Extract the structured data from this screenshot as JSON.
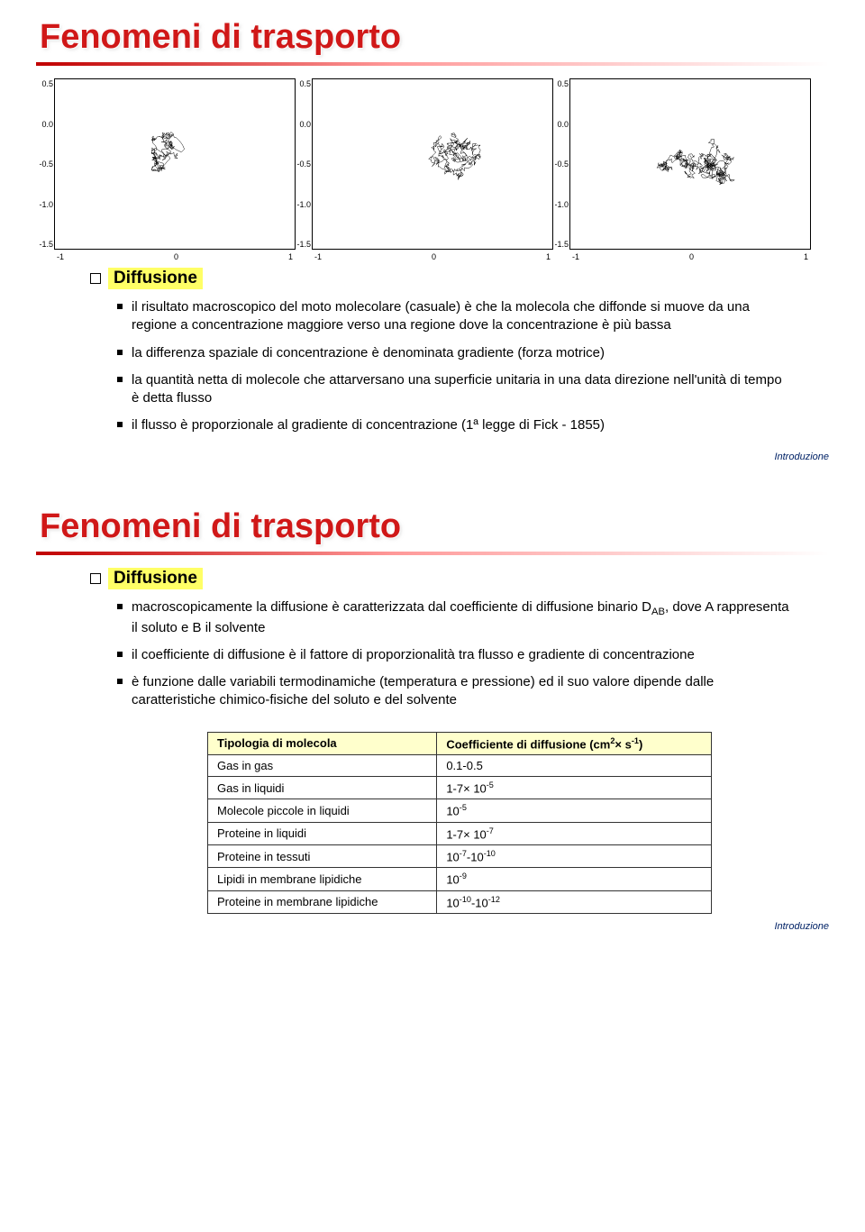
{
  "slide1": {
    "title": "Fenomeni di trasporto",
    "plots": {
      "yticks": [
        "0.5",
        "0.0",
        "-0.5",
        "-1.0",
        "-1.5"
      ],
      "xticks": [
        "-1",
        "0",
        "1"
      ],
      "xlim": [
        -1,
        1
      ],
      "ylim": [
        -1.5,
        0.5
      ],
      "border_color": "#000000",
      "axis_fontsize": 9,
      "bg_color": "#ffffff",
      "ink_color": "#000000",
      "panels": [
        {
          "density": 0.15,
          "spread_x": 0.22,
          "spread_y": 0.28
        },
        {
          "density": 0.35,
          "spread_x": 0.45,
          "spread_y": 0.45
        },
        {
          "density": 0.6,
          "spread_x": 0.7,
          "spread_y": 0.6
        }
      ]
    },
    "section_label": "Diffusione",
    "highlight_bg": "#ffff66",
    "bullets": [
      "il risultato macroscopico del moto molecolare (casuale) è che la molecola che diffonde si muove da una regione a concentrazione maggiore verso una regione dove la concentrazione è più bassa",
      "la differenza spaziale di concentrazione è denominata gradiente (forza motrice)",
      "la quantità netta di molecole che attarversano una superficie unitaria in una data direzione nell'unità di tempo è detta flusso",
      "il flusso è proporzionale al gradiente di concentrazione (1ª legge di Fick - 1855)"
    ],
    "footer": "Introduzione"
  },
  "slide2": {
    "title": "Fenomeni di trasporto",
    "section_label": "Diffusione",
    "highlight_bg": "#ffff66",
    "bullets": [
      {
        "pre": "macroscopicamente la diffusione è caratterizzata dal coefficiente di diffusione binario D",
        "sub": "AB",
        "post": ", dove A rappresenta il soluto e B il solvente"
      },
      {
        "text": "il coefficiente di diffusione è il fattore di proporzionalità tra flusso e gradiente di concentrazione"
      },
      {
        "text": "è funzione dalle variabili termodinamiche (temperatura e pressione) ed il suo valore dipende dalle caratteristiche chimico-fisiche del soluto e del solvente"
      }
    ],
    "table": {
      "header_bg": "#ffffcc",
      "col1_header": "Tipologia di molecola",
      "col2_header_pre": "Coefficiente di diffusione (cm",
      "col2_header_sup1": "2",
      "col2_header_mid": "× s",
      "col2_header_sup2": "-1",
      "col2_header_post": ")",
      "rows": [
        {
          "c1": "Gas in gas",
          "c2_plain": "0.1-0.5"
        },
        {
          "c1": "Gas in liquidi",
          "c2_pre": "1-7× 10",
          "c2_sup": "-5"
        },
        {
          "c1": "Molecole piccole in liquidi",
          "c2_pre": "10",
          "c2_sup": "-5"
        },
        {
          "c1": "Proteine in liquidi",
          "c2_pre": "1-7× 10",
          "c2_sup": "-7"
        },
        {
          "c1": "Proteine in tessuti",
          "c2_pre": "10",
          "c2_sup": "-7",
          "c2_mid": "-10",
          "c2_sup2": "-10"
        },
        {
          "c1": "Lipidi in membrane lipidiche",
          "c2_pre": "10",
          "c2_sup": "-9"
        },
        {
          "c1": "Proteine in membrane lipidiche",
          "c2_pre": "10",
          "c2_sup": "-10",
          "c2_mid": "-10",
          "c2_sup2": "-12"
        }
      ]
    },
    "footer": "Introduzione",
    "colors": {
      "title_color": "#d01818",
      "rule_gradient_start": "#c00000",
      "rule_gradient_end": "#ffffff",
      "footer_color": "#002266"
    }
  }
}
